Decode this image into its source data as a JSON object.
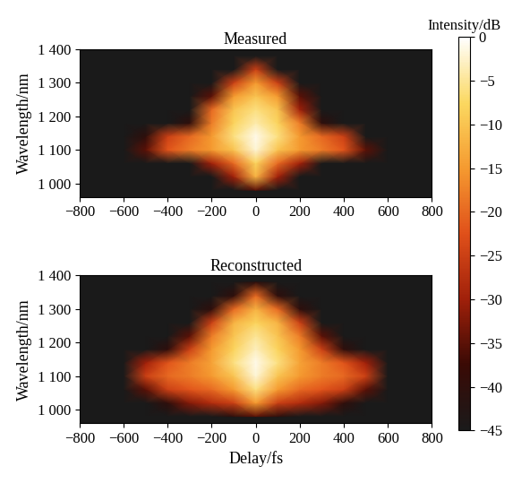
{
  "chart_data": [
    {
      "type": "heatmap",
      "title": "Measured",
      "ylabel": "Wavelength/nm",
      "x": [
        -800,
        -700,
        -600,
        -500,
        -400,
        -300,
        -200,
        -100,
        0,
        100,
        200,
        300,
        400,
        500,
        600,
        700,
        800
      ],
      "y": [
        980,
        1020,
        1060,
        1100,
        1140,
        1180,
        1220,
        1260,
        1300,
        1340,
        1380
      ],
      "cells": [
        [
          -45,
          -45,
          -45,
          -45,
          -45,
          -45,
          -45,
          -45,
          -35,
          -45,
          -45,
          -45,
          -45,
          -45,
          -45,
          -45,
          -45
        ],
        [
          -45,
          -45,
          -45,
          -45,
          -45,
          -45,
          -45,
          -30,
          -12,
          -30,
          -45,
          -45,
          -45,
          -45,
          -45,
          -45,
          -45
        ],
        [
          -45,
          -45,
          -45,
          -45,
          -45,
          -45,
          -30,
          -20,
          -8,
          -20,
          -30,
          -45,
          -45,
          -45,
          -45,
          -45,
          -45
        ],
        [
          -45,
          -45,
          -45,
          -35,
          -22,
          -18,
          -15,
          -10,
          -2,
          -10,
          -15,
          -18,
          -22,
          -35,
          -45,
          -45,
          -45
        ],
        [
          -45,
          -45,
          -45,
          -40,
          -25,
          -20,
          -15,
          -6,
          -1,
          -6,
          -15,
          -20,
          -25,
          -45,
          -45,
          -45,
          -45
        ],
        [
          -45,
          -45,
          -45,
          -45,
          -45,
          -40,
          -18,
          -8,
          -4,
          -8,
          -18,
          -40,
          -45,
          -45,
          -45,
          -45,
          -45
        ],
        [
          -45,
          -45,
          -45,
          -45,
          -45,
          -45,
          -20,
          -10,
          -6,
          -10,
          -30,
          -45,
          -45,
          -45,
          -45,
          -45,
          -45
        ],
        [
          -45,
          -45,
          -45,
          -45,
          -45,
          -45,
          -35,
          -15,
          -10,
          -15,
          -35,
          -45,
          -45,
          -45,
          -45,
          -45,
          -45
        ],
        [
          -45,
          -45,
          -45,
          -45,
          -45,
          -45,
          -45,
          -25,
          -15,
          -25,
          -45,
          -45,
          -45,
          -45,
          -45,
          -45,
          -45
        ],
        [
          -45,
          -45,
          -45,
          -45,
          -45,
          -45,
          -45,
          -45,
          -25,
          -45,
          -45,
          -45,
          -45,
          -45,
          -45,
          -45,
          -45
        ],
        [
          -45,
          -45,
          -45,
          -45,
          -45,
          -45,
          -45,
          -45,
          -45,
          -45,
          -45,
          -45,
          -45,
          -45,
          -45,
          -45,
          -45
        ]
      ],
      "xlim": [
        -800,
        800
      ],
      "xticks": [
        {
          "value": -800,
          "label": "−800"
        },
        {
          "value": -600,
          "label": "−600"
        },
        {
          "value": -400,
          "label": "−400"
        },
        {
          "value": -200,
          "label": "−200"
        },
        0,
        200,
        400,
        600,
        800
      ],
      "ylim": [
        960,
        1400
      ],
      "yticks": [
        {
          "value": 1000,
          "label": "1 000"
        },
        {
          "value": 1100,
          "label": "1 100"
        },
        {
          "value": 1200,
          "label": "1 200"
        },
        {
          "value": 1300,
          "label": "1 300"
        },
        {
          "value": 1400,
          "label": "1 400"
        }
      ],
      "colorbar": {
        "label": "Intensity/dB",
        "lim": [
          -45,
          0
        ],
        "ticks": [
          0,
          {
            "value": -5,
            "label": "−5"
          },
          {
            "value": -10,
            "label": "−10"
          },
          {
            "value": -15,
            "label": "−15"
          },
          {
            "value": -20,
            "label": "−20"
          },
          {
            "value": -25,
            "label": "−25"
          },
          {
            "value": -30,
            "label": "−30"
          },
          {
            "value": -35,
            "label": "−35"
          },
          {
            "value": -40,
            "label": "−40"
          },
          {
            "value": -45,
            "label": "−45"
          }
        ]
      }
    },
    {
      "type": "heatmap",
      "title": "Reconstructed",
      "xlabel": "Delay/fs",
      "ylabel": "Wavelength/nm",
      "x": [
        -800,
        -700,
        -600,
        -500,
        -400,
        -300,
        -200,
        -100,
        0,
        100,
        200,
        300,
        400,
        500,
        600,
        700,
        800
      ],
      "y": [
        980,
        1020,
        1060,
        1100,
        1140,
        1180,
        1220,
        1260,
        1300,
        1340,
        1380
      ],
      "cells": [
        [
          -45,
          -45,
          -45,
          -45,
          -45,
          -45,
          -45,
          -40,
          -35,
          -40,
          -45,
          -45,
          -45,
          -45,
          -45,
          -45,
          -45
        ],
        [
          -45,
          -45,
          -45,
          -45,
          -40,
          -32,
          -28,
          -25,
          -15,
          -25,
          -28,
          -32,
          -40,
          -45,
          -45,
          -45,
          -45
        ],
        [
          -45,
          -45,
          -45,
          -35,
          -25,
          -22,
          -20,
          -15,
          -6,
          -15,
          -20,
          -22,
          -25,
          -35,
          -45,
          -45,
          -45
        ],
        [
          -45,
          -45,
          -45,
          -25,
          -20,
          -18,
          -15,
          -10,
          -2,
          -10,
          -15,
          -18,
          -20,
          -25,
          -45,
          -45,
          -45
        ],
        [
          -45,
          -45,
          -45,
          -30,
          -22,
          -18,
          -14,
          -6,
          -1,
          -6,
          -14,
          -18,
          -22,
          -30,
          -45,
          -45,
          -45
        ],
        [
          -45,
          -45,
          -45,
          -45,
          -40,
          -25,
          -15,
          -8,
          -3,
          -8,
          -15,
          -25,
          -40,
          -45,
          -45,
          -45,
          -45
        ],
        [
          -45,
          -45,
          -45,
          -45,
          -45,
          -35,
          -18,
          -10,
          -5,
          -10,
          -18,
          -35,
          -45,
          -45,
          -45,
          -45,
          -45
        ],
        [
          -45,
          -45,
          -45,
          -45,
          -45,
          -45,
          -25,
          -12,
          -8,
          -12,
          -25,
          -45,
          -45,
          -45,
          -45,
          -45,
          -45
        ],
        [
          -45,
          -45,
          -45,
          -45,
          -45,
          -45,
          -40,
          -20,
          -12,
          -20,
          -40,
          -45,
          -45,
          -45,
          -45,
          -45,
          -45
        ],
        [
          -45,
          -45,
          -45,
          -45,
          -45,
          -45,
          -45,
          -40,
          -20,
          -40,
          -45,
          -45,
          -45,
          -45,
          -45,
          -45,
          -45
        ],
        [
          -45,
          -45,
          -45,
          -45,
          -45,
          -45,
          -45,
          -45,
          -40,
          -45,
          -45,
          -45,
          -45,
          -45,
          -45,
          -45,
          -45
        ]
      ],
      "xlim": [
        -800,
        800
      ],
      "xticks": [
        {
          "value": -800,
          "label": "−800"
        },
        {
          "value": -600,
          "label": "−600"
        },
        {
          "value": -400,
          "label": "−400"
        },
        {
          "value": -200,
          "label": "−200"
        },
        0,
        200,
        400,
        600,
        800
      ],
      "ylim": [
        960,
        1400
      ],
      "yticks": [
        {
          "value": 1000,
          "label": "1 000"
        },
        {
          "value": 1100,
          "label": "1 100"
        },
        {
          "value": 1200,
          "label": "1 200"
        },
        {
          "value": 1300,
          "label": "1 300"
        },
        {
          "value": 1400,
          "label": "1 400"
        }
      ]
    }
  ]
}
